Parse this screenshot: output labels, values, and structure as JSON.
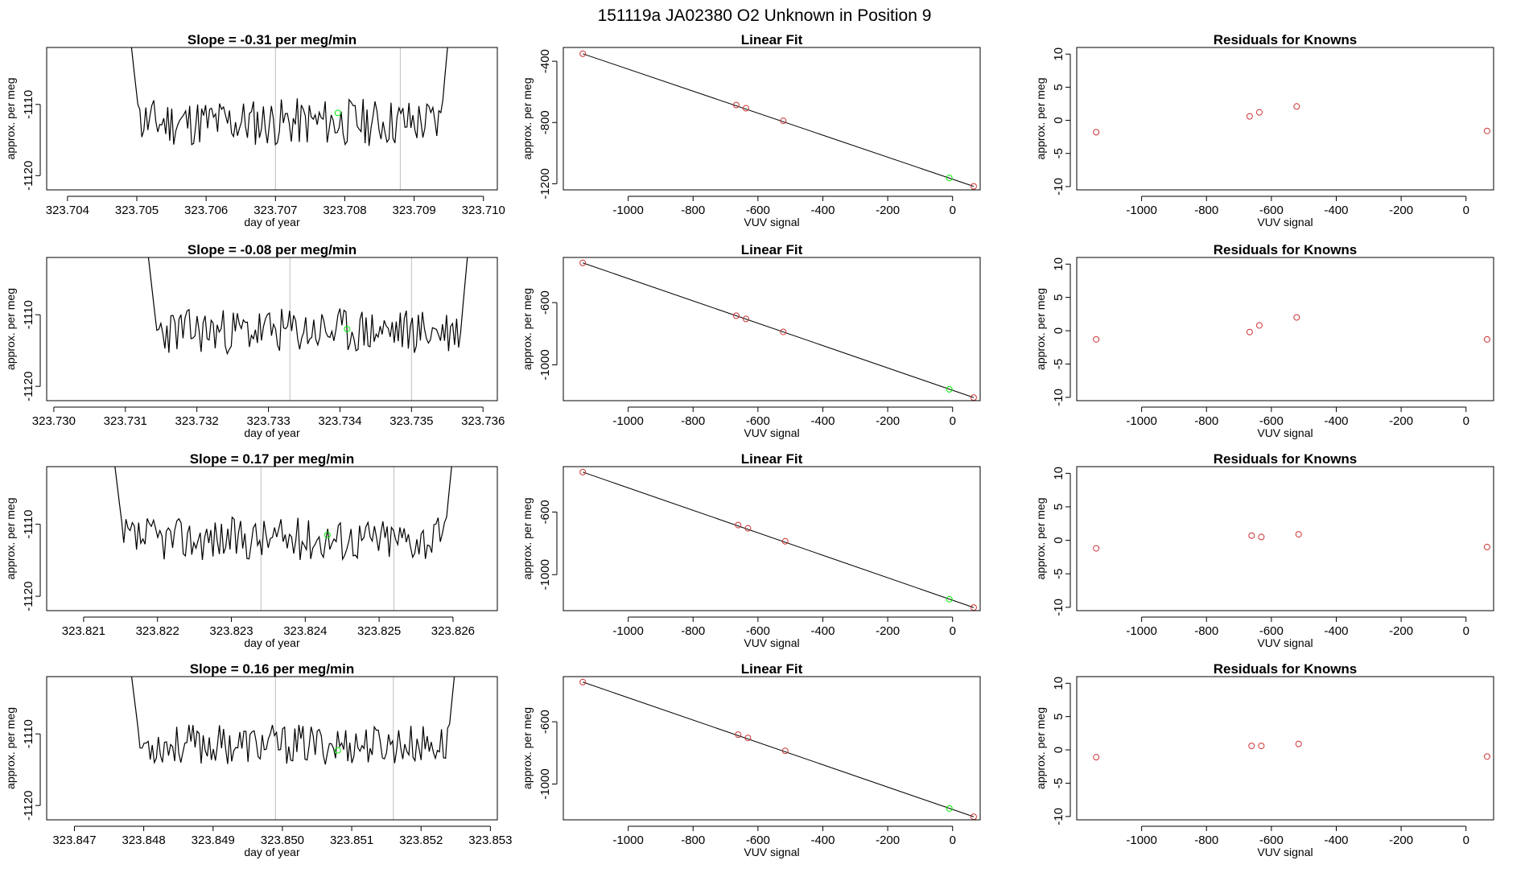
{
  "page": {
    "title": "151119a     JA02380    O2 Unknown in Position  9"
  },
  "colors": {
    "trace": "#000000",
    "vline": "#bebebe",
    "fit_line": "#000000",
    "known_point": "#cd3333",
    "unknown_point": "#00ee00",
    "frame": "#000000"
  },
  "chart_data": [
    {
      "type": "line",
      "title": "Slope =  -0.31  per meg/min",
      "xlabel": "day of year",
      "ylabel": "approx. per meg",
      "xlim": [
        323.7037,
        323.7102
      ],
      "ylim": [
        -1122,
        -1102
      ],
      "xticks": [
        "323.704",
        "323.705",
        "323.706",
        "323.707",
        "323.708",
        "323.709",
        "323.710"
      ],
      "yticks": [
        "-1120",
        "-1110"
      ],
      "series_x_range": [
        323.7049,
        323.7095
      ],
      "base": -1112.5,
      "amp": 3.4,
      "seed": 11,
      "start_value": -1100,
      "end_value": -1100,
      "vlines": [
        323.707,
        323.7088
      ],
      "unknown_point": {
        "x": 323.7079,
        "y": -1111.2
      }
    },
    {
      "type": "scatter",
      "title": "Linear Fit",
      "xlabel": "VUV signal",
      "ylabel": "approx. per meg",
      "xlim": [
        -1200,
        85
      ],
      "ylim": [
        -1240,
        -310
      ],
      "xticks": [
        "-1000",
        "-800",
        "-600",
        "-400",
        "-200",
        "0"
      ],
      "yticks": [
        "-400",
        "-800",
        "-1200"
      ],
      "fit": {
        "x": [
          -1140,
          65
        ],
        "y": [
          -351,
          -1217
        ]
      },
      "knowns": {
        "x": [
          -1140,
          -667,
          -637,
          -522,
          65
        ],
        "y": [
          -351,
          -686,
          -707,
          -789,
          -1217
        ]
      },
      "unknown": {
        "x": -10,
        "y": -1162
      }
    },
    {
      "type": "scatter",
      "title": "Residuals for Knowns",
      "xlabel": "VUV signal",
      "ylabel": "approx. per meg",
      "xlim": [
        -1200,
        85
      ],
      "ylim": [
        -10.5,
        11
      ],
      "xticks": [
        "-1000",
        "-800",
        "-600",
        "-400",
        "-200",
        "0"
      ],
      "yticks": [
        "-10",
        "-5",
        "0",
        "5",
        "10"
      ],
      "x": [
        -1140,
        -667,
        -637,
        -522,
        65
      ],
      "y": [
        -1.8,
        0.6,
        1.2,
        2.1,
        -1.6
      ]
    },
    {
      "type": "line",
      "title": "Slope =  -0.08  per meg/min",
      "xlabel": "day of year",
      "ylabel": "approx. per meg",
      "xlim": [
        323.7299,
        323.7362
      ],
      "ylim": [
        -1122,
        -1102
      ],
      "xticks": [
        "323.730",
        "323.731",
        "323.732",
        "323.733",
        "323.734",
        "323.735",
        "323.736"
      ],
      "yticks": [
        "-1120",
        "-1110"
      ],
      "series_x_range": [
        323.7313,
        323.7358
      ],
      "base": -1112.3,
      "amp": 3.2,
      "seed": 23,
      "start_value": -1100,
      "end_value": -1100,
      "vlines": [
        323.7333,
        323.735
      ],
      "unknown_point": {
        "x": 323.7341,
        "y": -1112.0
      }
    },
    {
      "type": "scatter",
      "title": "Linear Fit",
      "xlabel": "VUV signal",
      "ylabel": "approx. per meg",
      "xlim": [
        -1200,
        85
      ],
      "ylim": [
        -1230,
        -310
      ],
      "xticks": [
        "-1000",
        "-800",
        "-600",
        "-400",
        "-200",
        "0"
      ],
      "yticks": [
        "-600",
        "-1000"
      ],
      "fit": {
        "x": [
          -1140,
          65
        ],
        "y": [
          -345,
          -1210
        ]
      },
      "knowns": {
        "x": [
          -1140,
          -667,
          -637,
          -522,
          65
        ],
        "y": [
          -345,
          -684,
          -705,
          -788,
          -1210
        ]
      },
      "unknown": {
        "x": -10,
        "y": -1157
      }
    },
    {
      "type": "scatter",
      "title": "Residuals for Knowns",
      "xlabel": "VUV signal",
      "ylabel": "approx. per meg",
      "xlim": [
        -1200,
        85
      ],
      "ylim": [
        -10.5,
        11
      ],
      "xticks": [
        "-1000",
        "-800",
        "-600",
        "-400",
        "-200",
        "0"
      ],
      "yticks": [
        "-10",
        "-5",
        "0",
        "5",
        "10"
      ],
      "x": [
        -1140,
        -667,
        -637,
        -522,
        65
      ],
      "y": [
        -1.3,
        -0.2,
        0.8,
        2.0,
        -1.3
      ]
    },
    {
      "type": "line",
      "title": "Slope =  0.17  per meg/min",
      "xlabel": "day of year",
      "ylabel": "approx. per meg",
      "xlim": [
        323.8205,
        323.8266
      ],
      "ylim": [
        -1122,
        -1102
      ],
      "xticks": [
        "323.821",
        "323.822",
        "323.823",
        "323.824",
        "323.825",
        "323.826"
      ],
      "yticks": [
        "-1120",
        "-1110"
      ],
      "series_x_range": [
        323.8214,
        323.826
      ],
      "base": -1112.0,
      "amp": 3.0,
      "seed": 37,
      "start_value": -1100,
      "end_value": -1100,
      "vlines": [
        323.8234,
        323.8252
      ],
      "unknown_point": {
        "x": 323.8243,
        "y": -1111.5
      }
    },
    {
      "type": "scatter",
      "title": "Linear Fit",
      "xlabel": "VUV signal",
      "ylabel": "approx. per meg",
      "xlim": [
        -1200,
        85
      ],
      "ylim": [
        -1230,
        -310
      ],
      "xticks": [
        "-1000",
        "-800",
        "-600",
        "-400",
        "-200",
        "0"
      ],
      "yticks": [
        "-600",
        "-1000"
      ],
      "fit": {
        "x": [
          -1140,
          65
        ],
        "y": [
          -345,
          -1210
        ]
      },
      "knowns": {
        "x": [
          -1140,
          -661,
          -631,
          -516,
          65
        ],
        "y": [
          -345,
          -683,
          -704,
          -787,
          -1210
        ]
      },
      "unknown": {
        "x": -10,
        "y": -1157
      }
    },
    {
      "type": "scatter",
      "title": "Residuals for Knowns",
      "xlabel": "VUV signal",
      "ylabel": "approx. per meg",
      "xlim": [
        -1200,
        85
      ],
      "ylim": [
        -10.5,
        11
      ],
      "xticks": [
        "-1000",
        "-800",
        "-600",
        "-400",
        "-200",
        "0"
      ],
      "yticks": [
        "-10",
        "-5",
        "0",
        "5",
        "10"
      ],
      "x": [
        -1140,
        -661,
        -631,
        -516,
        65
      ],
      "y": [
        -1.2,
        0.7,
        0.5,
        0.9,
        -1.0
      ]
    },
    {
      "type": "line",
      "title": "Slope =  0.16  per meg/min",
      "xlabel": "day of year",
      "ylabel": "approx. per meg",
      "xlim": [
        323.8466,
        323.8531
      ],
      "ylim": [
        -1122,
        -1102
      ],
      "xticks": [
        "323.847",
        "323.848",
        "323.849",
        "323.850",
        "323.851",
        "323.852",
        "323.853"
      ],
      "yticks": [
        "-1120",
        "-1110"
      ],
      "series_x_range": [
        323.8478,
        323.8525
      ],
      "base": -1111.5,
      "amp": 2.8,
      "seed": 53,
      "start_value": -1100,
      "end_value": -1100,
      "vlines": [
        323.8499,
        323.8516
      ],
      "unknown_point": {
        "x": 323.8508,
        "y": -1112.3
      }
    },
    {
      "type": "scatter",
      "title": "Linear Fit",
      "xlabel": "VUV signal",
      "ylabel": "approx. per meg",
      "xlim": [
        -1200,
        85
      ],
      "ylim": [
        -1230,
        -310
      ],
      "xticks": [
        "-1000",
        "-800",
        "-600",
        "-400",
        "-200",
        "0"
      ],
      "yticks": [
        "-600",
        "-1000"
      ],
      "fit": {
        "x": [
          -1140,
          65
        ],
        "y": [
          -345,
          -1210
        ]
      },
      "knowns": {
        "x": [
          -1140,
          -661,
          -631,
          -516,
          65
        ],
        "y": [
          -345,
          -683,
          -704,
          -787,
          -1210
        ]
      },
      "unknown": {
        "x": -10,
        "y": -1157
      }
    },
    {
      "type": "scatter",
      "title": "Residuals for Knowns",
      "xlabel": "VUV signal",
      "ylabel": "approx. per meg",
      "xlim": [
        -1200,
        85
      ],
      "ylim": [
        -10.5,
        11
      ],
      "xticks": [
        "-1000",
        "-800",
        "-600",
        "-400",
        "-200",
        "0"
      ],
      "yticks": [
        "-10",
        "-5",
        "0",
        "5",
        "10"
      ],
      "x": [
        -1140,
        -661,
        -631,
        -516,
        65
      ],
      "y": [
        -1.1,
        0.6,
        0.6,
        0.9,
        -1.0
      ]
    }
  ]
}
